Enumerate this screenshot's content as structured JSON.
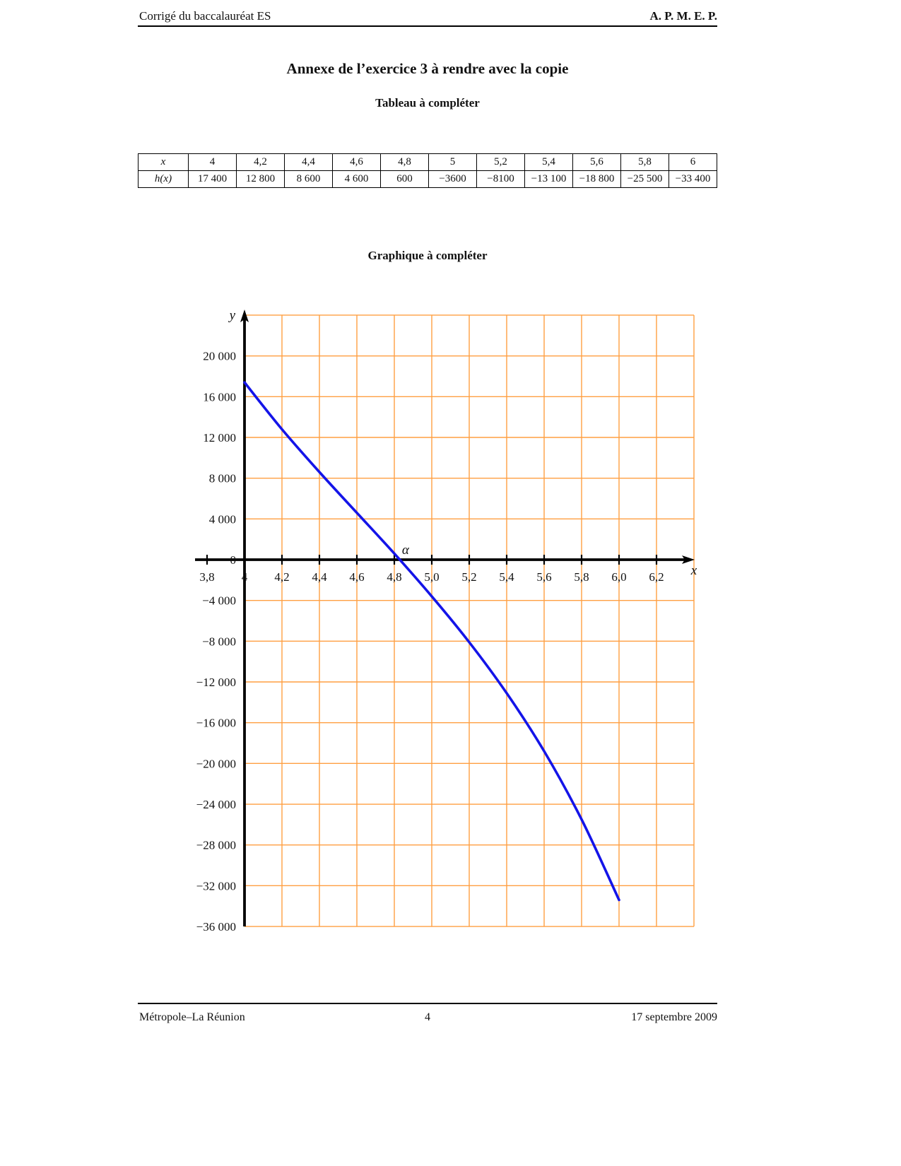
{
  "page": {
    "header_left": "Corrigé du baccalauréat ES",
    "header_right": "A. P. M. E. P.",
    "title": "Annexe de l’exercice 3 à rendre avec la copie",
    "table_title": "Tableau à compléter",
    "chart_title": "Graphique à compléter",
    "footer_left": "Métropole–La Réunion",
    "footer_center": "4",
    "footer_right": "17 septembre 2009"
  },
  "table": {
    "row_labels": [
      "x",
      "h(x)"
    ],
    "x_values": [
      "4",
      "4,2",
      "4,4",
      "4,6",
      "4,8",
      "5",
      "5,2",
      "5,4",
      "5,6",
      "5,8",
      "6"
    ],
    "hx_values": [
      "17 400",
      "12 800",
      "8 600",
      "4 600",
      "600",
      "−3600",
      "−8100",
      "−13 100",
      "−18 800",
      "−25 500",
      "−33 400"
    ]
  },
  "chart_data": {
    "type": "line",
    "title": "Graphique à compléter",
    "xlabel": "x",
    "ylabel": "y",
    "x": [
      4,
      4.2,
      4.4,
      4.6,
      4.8,
      5,
      5.2,
      5.4,
      5.6,
      5.8,
      6
    ],
    "y": [
      17400,
      12800,
      8600,
      4600,
      600,
      -3600,
      -8100,
      -13100,
      -18800,
      -25500,
      -33400
    ],
    "x_tick_values": [
      3.8,
      4,
      4.2,
      4.4,
      4.6,
      4.8,
      5,
      5.2,
      5.4,
      5.6,
      5.8,
      6,
      6.2
    ],
    "x_tick_labels": [
      "3,8",
      "4",
      "4,2",
      "4,4",
      "4,6",
      "4,8",
      "5,0",
      "5,2",
      "5,4",
      "5,6",
      "5,8",
      "6,0",
      "6,2"
    ],
    "y_tick_values": [
      20000,
      16000,
      12000,
      8000,
      4000,
      0,
      -4000,
      -8000,
      -12000,
      -16000,
      -20000,
      -24000,
      -28000,
      -32000,
      -36000
    ],
    "y_tick_labels": [
      "20 000",
      "16 000",
      "12 000",
      "8 000",
      "4 000",
      "0",
      "−4 000",
      "−8 000",
      "−12 000",
      "−16 000",
      "−20 000",
      "−24 000",
      "−28 000",
      "−32 000",
      "−36 000"
    ],
    "grid_x_range": [
      4,
      6.4
    ],
    "grid_x_step": 0.2,
    "grid_y_range": [
      -36000,
      24000
    ],
    "grid_y_step": 4000,
    "annotation": {
      "text": "α",
      "x": 4.86
    },
    "zero_label": "0",
    "line_color": "#1414e8",
    "grid_color": "#ff9f42",
    "axis_color": "#000000",
    "grid_on": true,
    "legend": null
  }
}
